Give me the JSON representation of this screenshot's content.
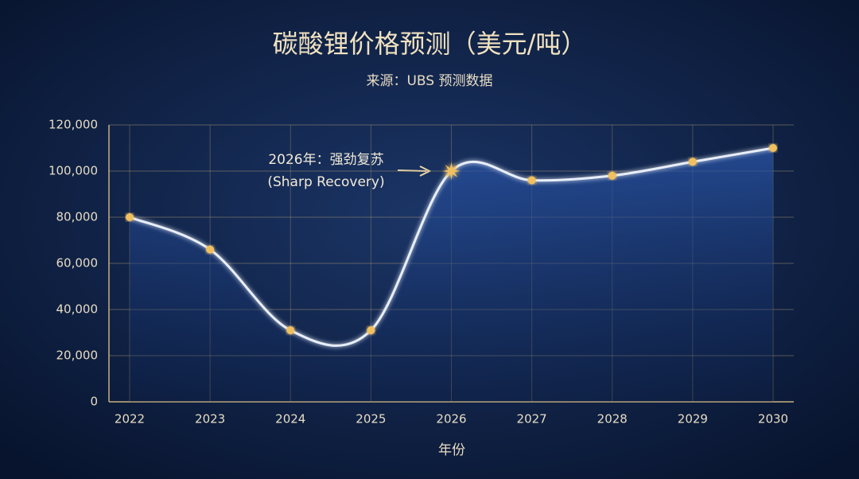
{
  "chart_data": {
    "type": "line",
    "title": "碳酸锂价格预测（美元/吨）",
    "subtitle": "来源：UBS 预测数据",
    "xlabel": "年份",
    "annotation": [
      "2026年：强劲复苏",
      "(Sharp Recovery)"
    ],
    "categories": [
      "2022",
      "2023",
      "2024",
      "2025",
      "2026",
      "2027",
      "2028",
      "2029",
      "2030"
    ],
    "values": [
      80000,
      66000,
      31000,
      31000,
      100000,
      96000,
      98000,
      104000,
      110000
    ],
    "color": "#f0c060",
    "ylim": [
      0,
      120000
    ],
    "yticks": [
      0,
      {
        "value": 20000,
        "label": "20,000"
      },
      {
        "value": 40000,
        "label": "40,000"
      },
      {
        "value": 60000,
        "label": "60,000"
      },
      {
        "value": 80000,
        "label": "80,000"
      },
      {
        "value": 100000,
        "label": "100,000"
      },
      {
        "value": 120000,
        "label": "120,000"
      }
    ],
    "grid": true
  }
}
